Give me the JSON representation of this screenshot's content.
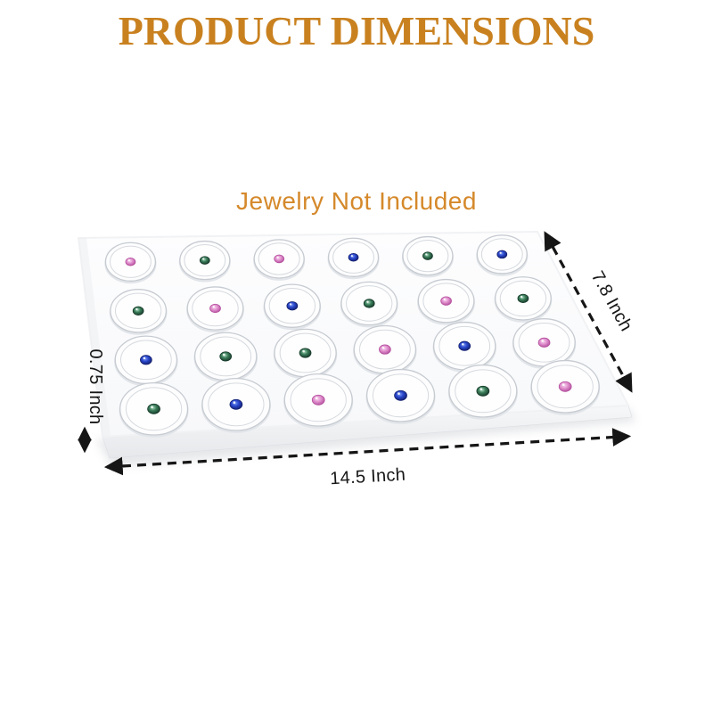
{
  "title": {
    "text": "PRODUCT DIMENSIONS",
    "color": "#c9811f"
  },
  "note": {
    "text": "Jewelry Not Included",
    "color": "#d5892b"
  },
  "dimensions": {
    "width_label": "14.5 Inch",
    "depth_label": "7.8 Inch",
    "thickness_label": "0.75 Inch"
  },
  "annotation_color": "#161616",
  "tray": {
    "rows": 4,
    "cols": 6,
    "jar_count": 24,
    "foam_color": "#fbfcfd",
    "jar_rim_color": "#c6cbd1",
    "gem_grid": [
      [
        "pink",
        "green",
        "pink",
        "blue",
        "green",
        "blue"
      ],
      [
        "green",
        "pink",
        "blue",
        "green",
        "pink",
        "green"
      ],
      [
        "blue",
        "green",
        "green",
        "pink",
        "blue",
        "pink"
      ],
      [
        "green",
        "blue",
        "pink",
        "blue",
        "green",
        "pink"
      ]
    ]
  },
  "gem_colors": {
    "pink": {
      "hi": "#f7d7ee",
      "mid": "#e292cf",
      "edge": "#b44f9d"
    },
    "green": {
      "hi": "#a8d8bf",
      "mid": "#3a7c58",
      "edge": "#16382a"
    },
    "blue": {
      "hi": "#7e9bf2",
      "mid": "#2a47cc",
      "edge": "#131f6e"
    }
  }
}
